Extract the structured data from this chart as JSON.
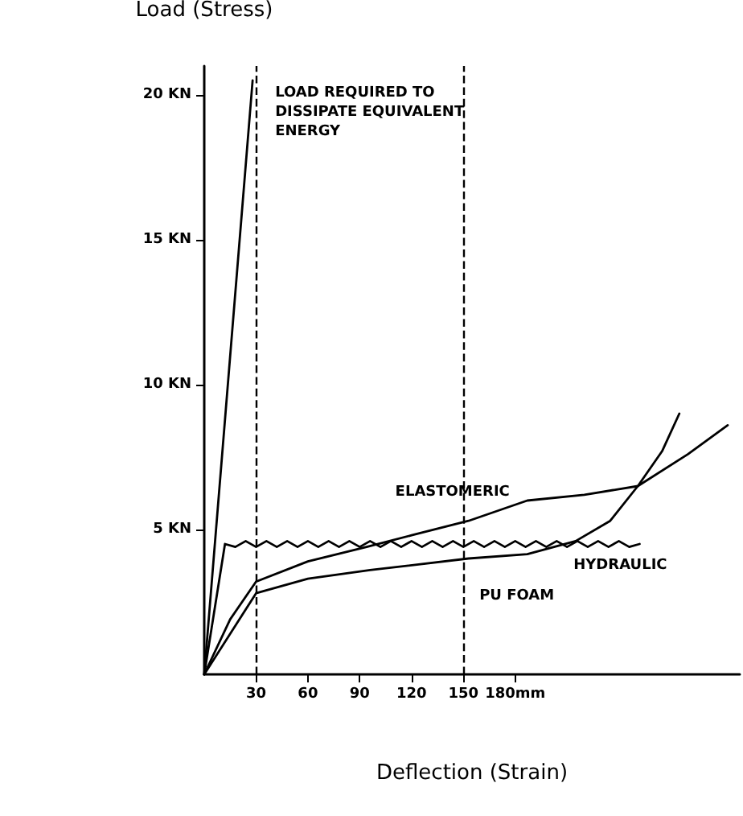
{
  "chart_data": {
    "type": "line",
    "xlabel": "Deflection (Strain)",
    "ylabel": "Load (Stress)",
    "xlim": [
      0,
      310
    ],
    "ylim": [
      0,
      21
    ],
    "xticks": [
      30,
      60,
      90,
      120,
      150,
      {
        "value": 180,
        "label": "180mm"
      }
    ],
    "yticks": [
      {
        "value": 5,
        "label": "5 KN"
      },
      {
        "value": 10,
        "label": "10 KN"
      },
      {
        "value": 15,
        "label": "15 KN"
      },
      {
        "value": 20,
        "label": "20 KN"
      }
    ],
    "grid": false,
    "legend": false,
    "marker": "none",
    "line_style": "solid",
    "series": [
      {
        "color": "#000000",
        "x": [
          0,
          28
        ],
        "values": [
          0,
          20.5
        ]
      },
      {
        "name": "ELASTOMERIC",
        "color": "#000000",
        "x": [
          0,
          15,
          30,
          60,
          94,
          120,
          153,
          187,
          220,
          251,
          280,
          303
        ],
        "values": [
          0,
          1.9,
          3.2,
          3.9,
          4.4,
          4.8,
          5.3,
          6.0,
          6.2,
          6.5,
          7.6,
          8.6
        ]
      },
      {
        "name": "HYDRAULIC",
        "color": "#000000",
        "x": [
          0,
          12,
          18,
          24,
          30,
          36,
          42,
          48,
          54,
          60,
          66,
          72,
          78,
          84,
          90,
          96,
          102,
          108,
          114,
          120,
          126,
          132,
          138,
          144,
          150,
          156,
          162,
          168,
          174,
          180,
          186,
          192,
          198,
          204,
          210,
          216,
          222,
          228,
          234,
          240,
          246,
          252
        ],
        "values": [
          0,
          4.5,
          4.4,
          4.6,
          4.4,
          4.6,
          4.4,
          4.6,
          4.4,
          4.6,
          4.4,
          4.6,
          4.4,
          4.6,
          4.4,
          4.6,
          4.4,
          4.6,
          4.4,
          4.6,
          4.4,
          4.6,
          4.4,
          4.6,
          4.4,
          4.6,
          4.4,
          4.6,
          4.4,
          4.6,
          4.4,
          4.6,
          4.4,
          4.6,
          4.4,
          4.6,
          4.4,
          4.6,
          4.4,
          4.6,
          4.4,
          4.5
        ]
      },
      {
        "name": "PU FOAM",
        "color": "#000000",
        "x": [
          0,
          30,
          60,
          96,
          153,
          187,
          215,
          235,
          251,
          265,
          275
        ],
        "values": [
          0,
          2.8,
          3.3,
          3.6,
          4.0,
          4.15,
          4.6,
          5.3,
          6.5,
          7.7,
          9.0
        ]
      }
    ],
    "ref_lines": [
      {
        "axis": "x",
        "value": 30,
        "line_style": "dashed"
      },
      {
        "axis": "x",
        "value": 150,
        "line_style": "dashed"
      }
    ],
    "annotations": [
      {
        "text": "LOAD REQUIRED TO DISSIPATE EQUIVALENT ENERGY",
        "x": 28,
        "y": 20.5
      }
    ]
  }
}
